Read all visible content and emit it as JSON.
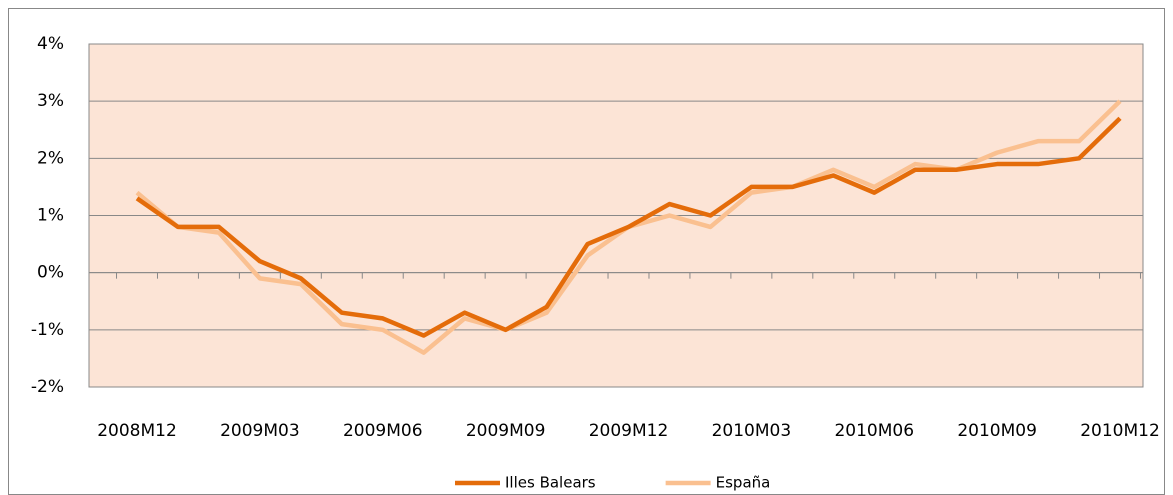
{
  "chart_data": {
    "type": "line",
    "categories": [
      "2008M12",
      null,
      null,
      "2009M03",
      null,
      null,
      "2009M06",
      null,
      null,
      "2009M09",
      null,
      null,
      "2009M12",
      null,
      null,
      "2010M03",
      null,
      null,
      "2010M06",
      null,
      null,
      "2010M09",
      null,
      null,
      "2010M12"
    ],
    "series": [
      {
        "name": "Illes Balears",
        "color": "#e46c0a",
        "values": [
          1.3,
          0.8,
          0.8,
          0.2,
          -0.1,
          -0.7,
          -0.8,
          -1.1,
          -0.7,
          -1.0,
          -0.6,
          0.5,
          0.8,
          1.2,
          1.0,
          1.5,
          1.5,
          1.7,
          1.4,
          1.8,
          1.8,
          1.9,
          1.9,
          2.0,
          2.7
        ]
      },
      {
        "name": "España",
        "color": "#fac090",
        "values": [
          1.4,
          0.8,
          0.7,
          -0.1,
          -0.2,
          -0.9,
          -1.0,
          -1.4,
          -0.8,
          -1.0,
          -0.7,
          0.3,
          0.8,
          1.0,
          0.8,
          1.4,
          1.5,
          1.8,
          1.5,
          1.9,
          1.8,
          2.1,
          2.3,
          2.3,
          3.0
        ]
      }
    ],
    "ylim": [
      -2,
      4
    ],
    "yticks": [
      {
        "value": -2,
        "label": "-2%"
      },
      {
        "value": -1,
        "label": "-1%"
      },
      {
        "value": 0,
        "label": "0%"
      },
      {
        "value": 1,
        "label": "1%"
      },
      {
        "value": 2,
        "label": "2%"
      },
      {
        "value": 3,
        "label": "3%"
      },
      {
        "value": 4,
        "label": "4%"
      }
    ],
    "grid": true,
    "legend": "bottom"
  }
}
